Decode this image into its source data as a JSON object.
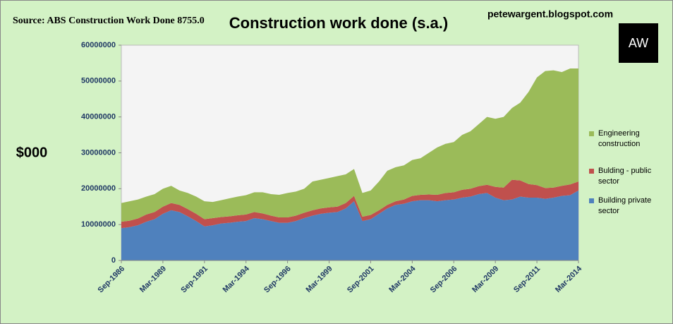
{
  "chart_data": {
    "type": "stacked_area",
    "title": "Construction work done (s.a.)",
    "source": "Source: ABS Construction Work Done 8755.0",
    "website": "petewargent.blogspot.com",
    "logo_text": "AW",
    "ylabel": "$000",
    "categories": [
      "Sep-1986",
      null,
      null,
      null,
      null,
      "Mar-1989",
      null,
      null,
      null,
      null,
      "Sep-1991",
      null,
      null,
      null,
      null,
      "Mar-1994",
      null,
      null,
      null,
      null,
      "Sep-1996",
      null,
      null,
      null,
      null,
      "Mar-1999",
      null,
      null,
      null,
      null,
      "Sep-2001",
      null,
      null,
      null,
      null,
      "Mar-2004",
      null,
      null,
      null,
      null,
      "Sep-2006",
      null,
      null,
      null,
      null,
      "Mar-2009",
      null,
      null,
      null,
      null,
      "Sep-2011",
      null,
      null,
      null,
      null,
      "Mar-2014"
    ],
    "series": [
      {
        "name": "Building private sector",
        "color": "#4f81bd",
        "values": [
          9000000,
          9300000,
          9800000,
          10800000,
          11500000,
          13000000,
          14000000,
          13500000,
          12300000,
          11000000,
          9500000,
          9800000,
          10300000,
          10500000,
          10800000,
          11000000,
          11800000,
          11500000,
          11000000,
          10500000,
          10500000,
          11000000,
          11800000,
          12500000,
          13000000,
          13300000,
          13500000,
          14500000,
          16500000,
          11000000,
          11500000,
          13000000,
          14500000,
          15500000,
          15800000,
          16500000,
          16800000,
          16800000,
          16500000,
          16800000,
          17000000,
          17500000,
          17800000,
          18500000,
          18800000,
          17500000,
          16800000,
          17000000,
          17800000,
          17500000,
          17500000,
          17200000,
          17500000,
          18000000,
          18200000,
          19500000
        ]
      },
      {
        "name": "Bulding - public sector",
        "color": "#c0504d",
        "values": [
          1800000,
          1800000,
          1900000,
          2000000,
          2000000,
          2000000,
          2000000,
          2000000,
          2000000,
          2000000,
          2000000,
          2000000,
          1800000,
          1800000,
          1800000,
          1800000,
          1700000,
          1600000,
          1500000,
          1500000,
          1500000,
          1500000,
          1500000,
          1500000,
          1500000,
          1500000,
          1500000,
          1500000,
          1500000,
          1200000,
          1200000,
          1000000,
          1000000,
          1000000,
          1200000,
          1500000,
          1500000,
          1600000,
          1800000,
          2000000,
          2000000,
          2200000,
          2200000,
          2200000,
          2300000,
          3000000,
          3500000,
          5500000,
          4500000,
          3800000,
          3500000,
          3000000,
          2800000,
          2800000,
          3000000,
          2500000
        ]
      },
      {
        "name": "Engineering construction",
        "color": "#9bbb59",
        "values": [
          5200000,
          5400000,
          5300000,
          5000000,
          5000000,
          5000000,
          4800000,
          4000000,
          4500000,
          4800000,
          5000000,
          4500000,
          4700000,
          5000000,
          5200000,
          5400000,
          5500000,
          5900000,
          6000000,
          6300000,
          6800000,
          6700000,
          6700000,
          8000000,
          8000000,
          8200000,
          8500000,
          8000000,
          7500000,
          6600000,
          6800000,
          8000000,
          9500000,
          9500000,
          9500000,
          10000000,
          10200000,
          11600000,
          13200000,
          13700000,
          14000000,
          15300000,
          16000000,
          17300000,
          18900000,
          19000000,
          19700000,
          20000000,
          21700000,
          25700000,
          30000000,
          32600000,
          32700000,
          31700000,
          32300000,
          31500000
        ]
      }
    ],
    "ylim": [
      0,
      60000000
    ],
    "yticks": [
      0,
      10000000,
      20000000,
      30000000,
      40000000,
      50000000,
      60000000
    ],
    "grid": false
  }
}
